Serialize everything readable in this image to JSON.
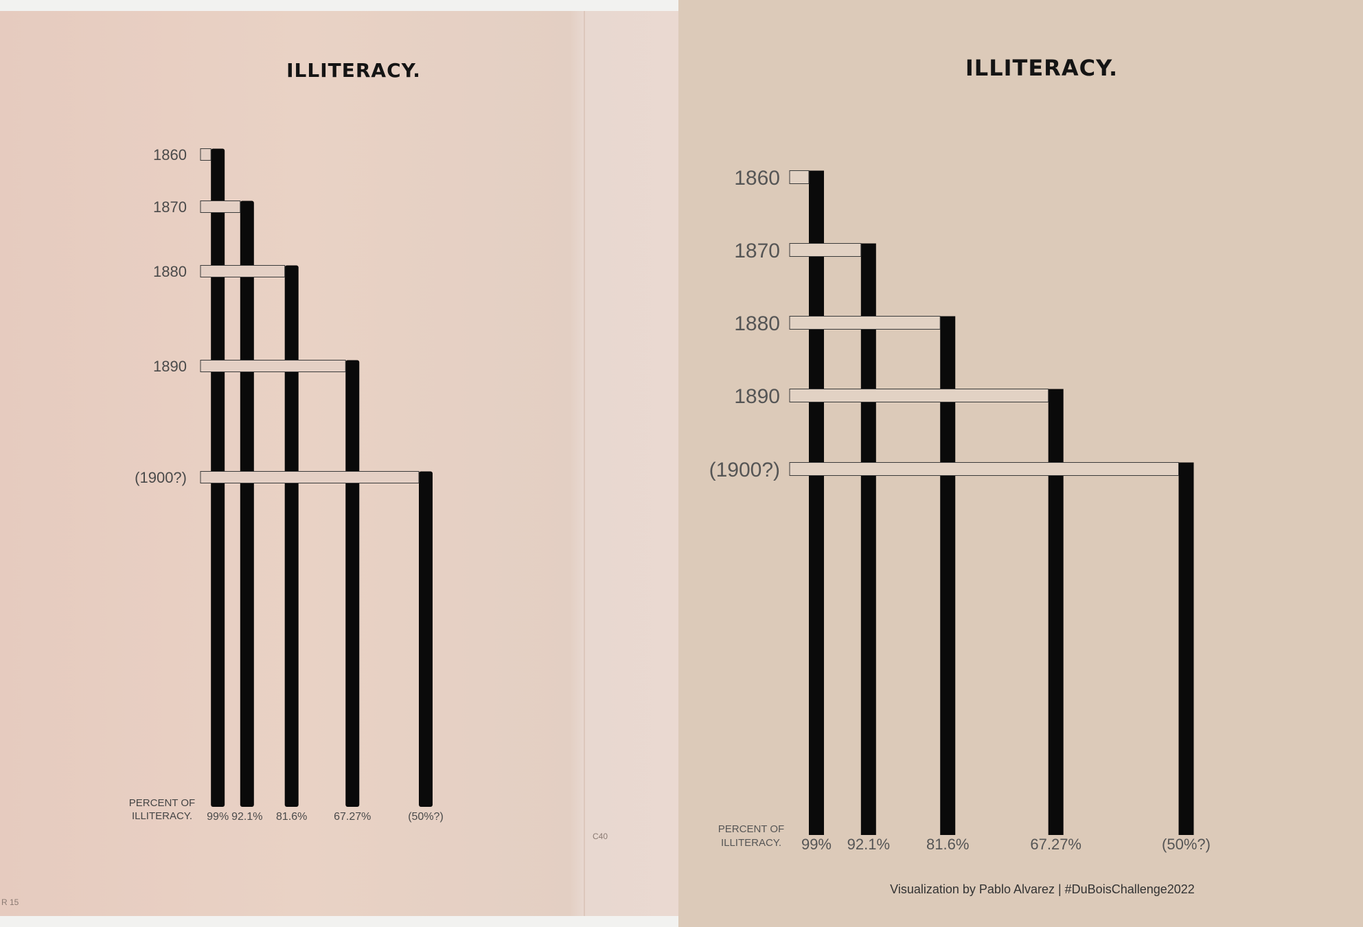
{
  "left_chart": {
    "title": "ILLITERACY.",
    "footer_label_line1": "PERCENT OF",
    "footer_label_line2": "ILLITERACY.",
    "archive_mark": "C40",
    "corner_mark": "R 15"
  },
  "right_chart": {
    "title": "ILLITERACY.",
    "footer_label_line1": "PERCENT OF",
    "footer_label_line2": "ILLITERACY.",
    "credit": "Visualization by Pablo Alvarez | #DuBoisChallenge2022"
  },
  "colors": {
    "left_paper": "#e7cfc2",
    "right_background": "#dccab9",
    "bar": "#0a0a0a",
    "connector_fill": "#e4d2c8",
    "connector_stroke": "#3a3a3a",
    "text": "#555555"
  },
  "chart_data": [
    {
      "type": "bar",
      "title": "ILLITERACY.",
      "categories": [
        "1860",
        "1870",
        "1880",
        "1890",
        "(1900?)"
      ],
      "value_labels": [
        "99%",
        "92.1%",
        "81.6%",
        "67.27%",
        "(50%?)"
      ],
      "values": [
        99,
        92.1,
        81.6,
        67.27,
        50
      ],
      "xlabel": "PERCENT OF ILLITERACY.",
      "ylabel": "",
      "xlim": [
        0,
        100
      ],
      "grid": false
    },
    {
      "type": "bar",
      "title": "ILLITERACY.",
      "categories": [
        "1860",
        "1870",
        "1880",
        "1890",
        "(1900?)"
      ],
      "value_labels": [
        "99%",
        "92.1%",
        "81.6%",
        "67.27%",
        "(50%?)"
      ],
      "values": [
        99,
        92.1,
        81.6,
        67.27,
        50
      ],
      "xlabel": "PERCENT OF ILLITERACY.",
      "ylabel": "",
      "xlim": [
        0,
        100
      ],
      "grid": false
    }
  ]
}
